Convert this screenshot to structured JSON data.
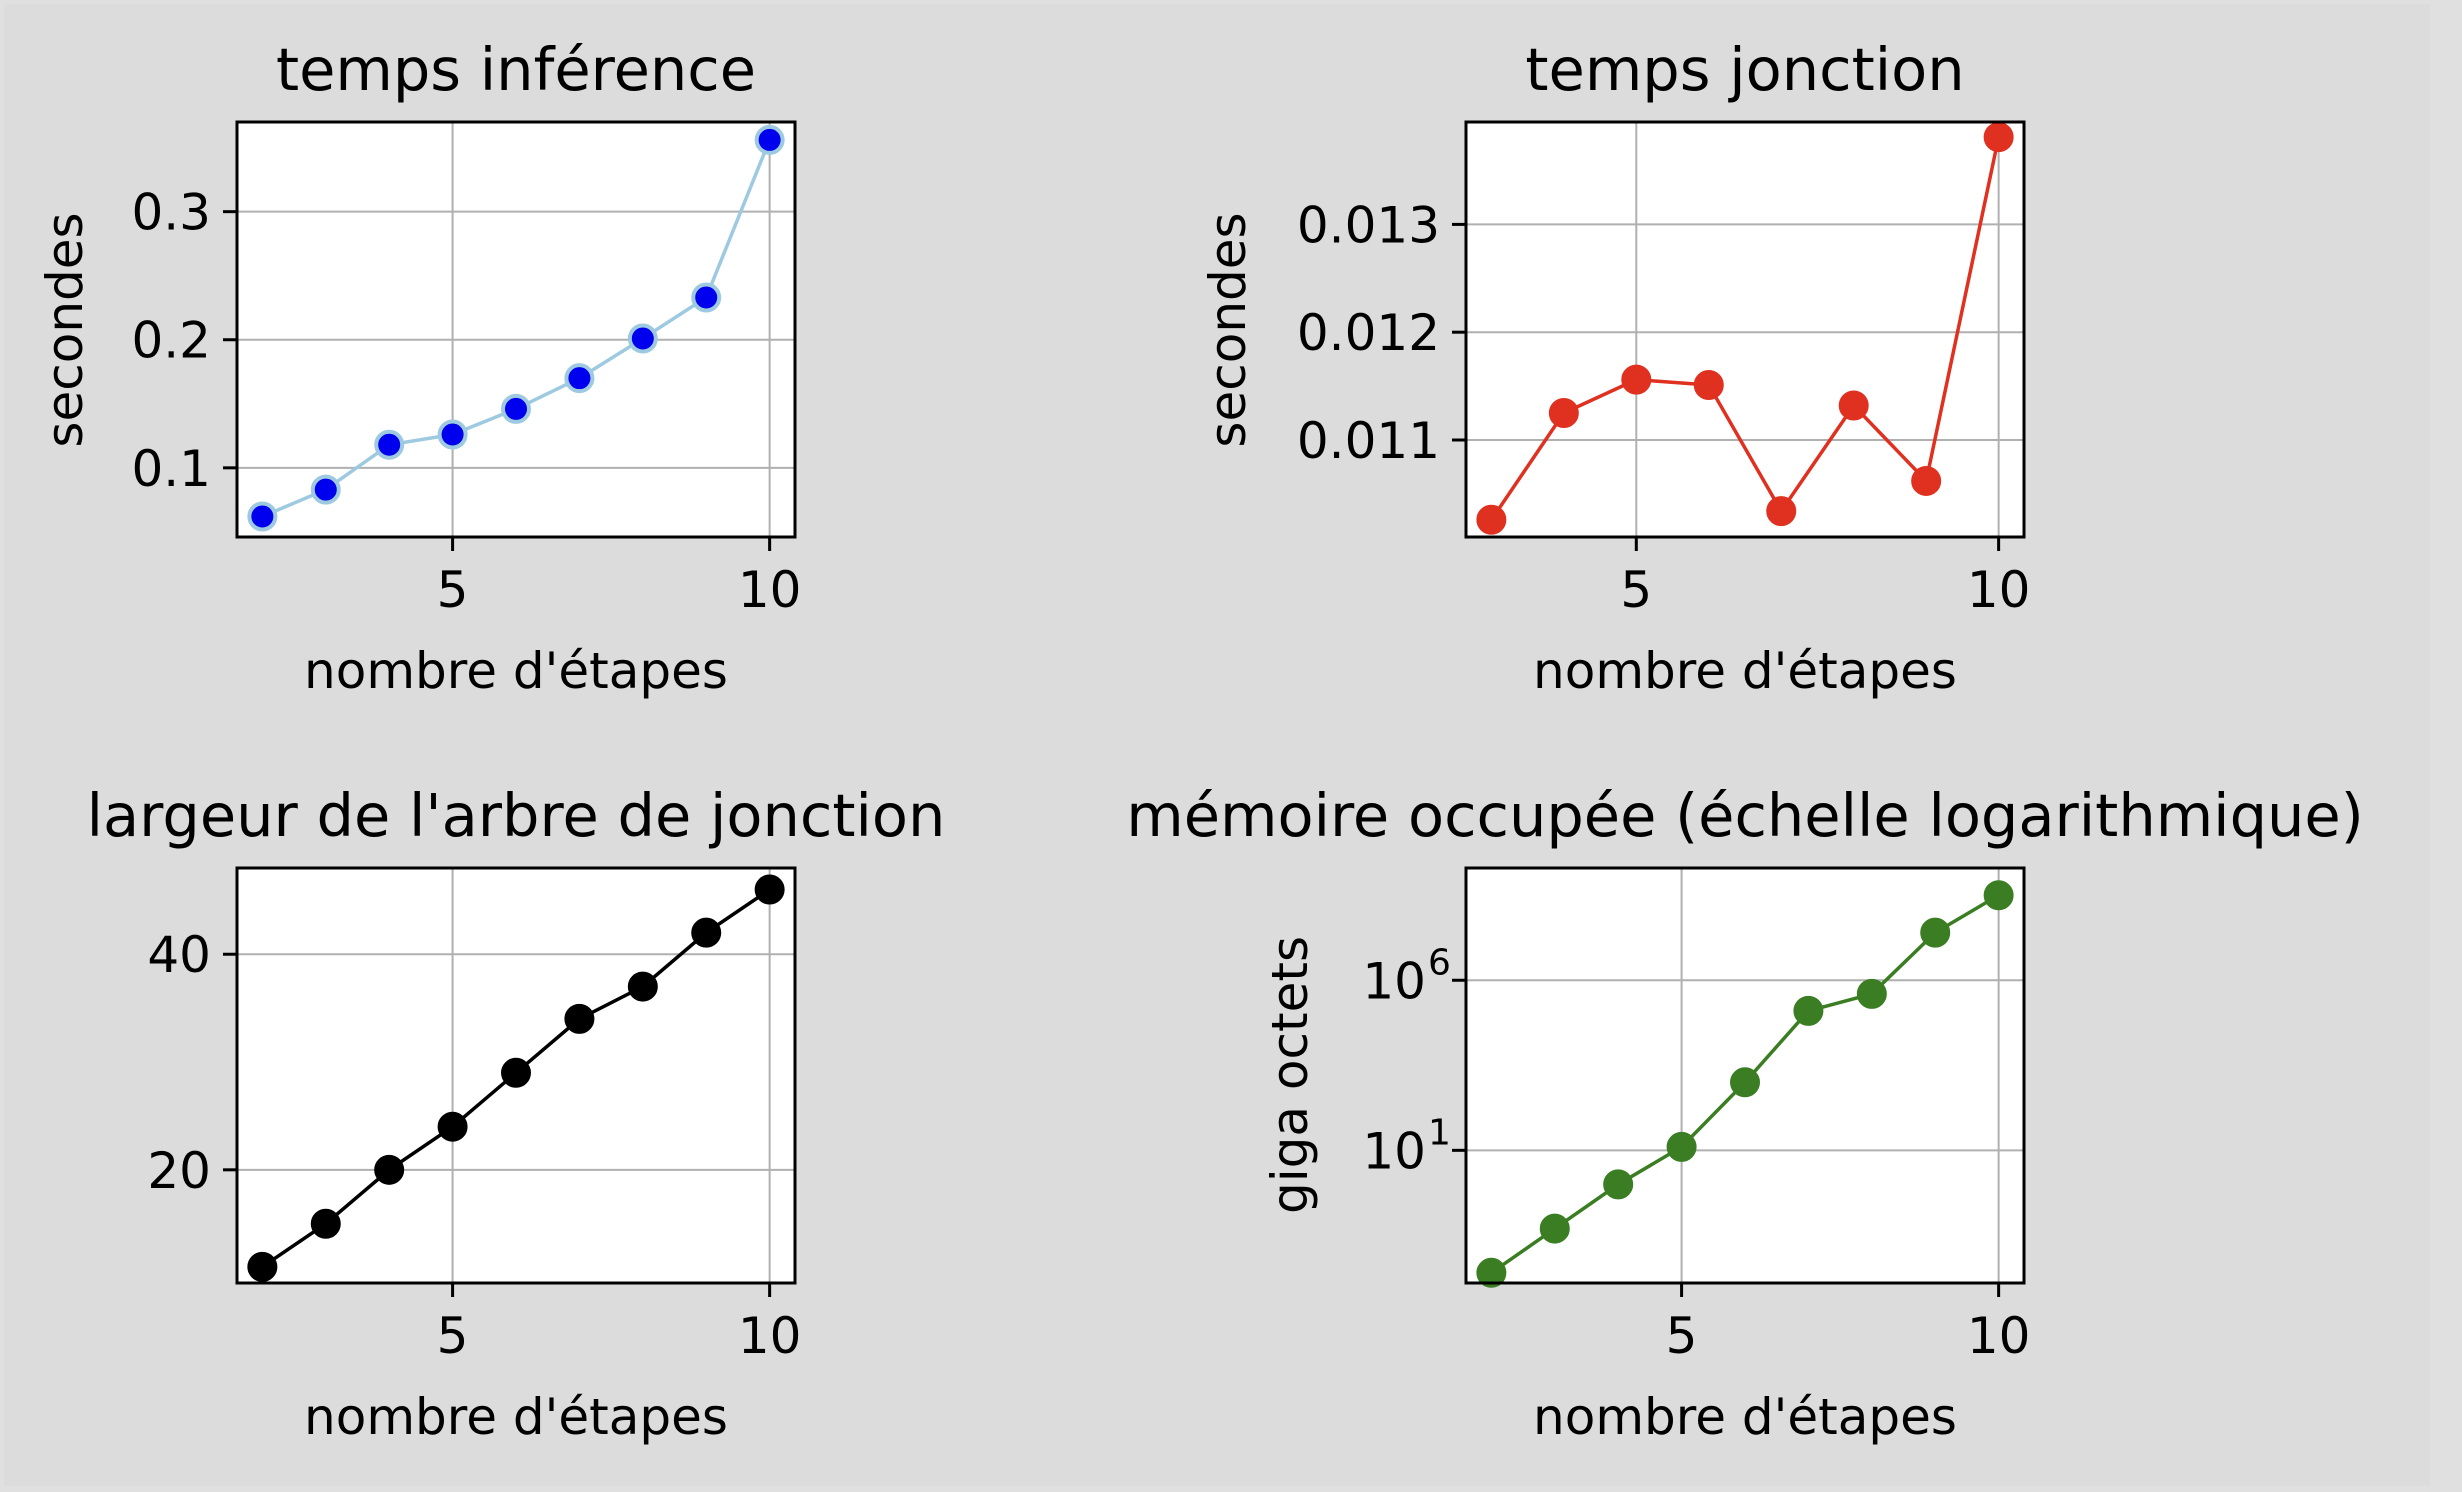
{
  "chart_data": [
    {
      "type": "line",
      "title": "temps inférence",
      "xlabel": "nombre d'étapes",
      "ylabel": "secondes",
      "xscale": "linear",
      "yscale": "linear",
      "grid": true,
      "xlim": [
        1.6,
        10.4
      ],
      "ylim": [
        0.046,
        0.37
      ],
      "xticks": [
        5,
        10
      ],
      "xtick_labels": [
        "5",
        "10"
      ],
      "yticks": [
        0.1,
        0.2,
        0.3
      ],
      "ytick_labels": [
        "0.1",
        "0.2",
        "0.3"
      ],
      "color": "#9ecae1",
      "marker_face": "#0000ee",
      "series": [
        {
          "x": [
            2,
            3,
            4,
            5,
            6,
            7,
            8,
            9,
            10
          ],
          "y": [
            0.062,
            0.083,
            0.118,
            0.126,
            0.146,
            0.17,
            0.201,
            0.233,
            0.356
          ]
        }
      ]
    },
    {
      "type": "line",
      "title": "temps jonction",
      "xlabel": "nombre d'étapes",
      "ylabel": "secondes",
      "xscale": "linear",
      "yscale": "linear",
      "grid": true,
      "xlim": [
        2.65,
        10.35
      ],
      "ylim": [
        0.0101,
        0.01395
      ],
      "xticks": [
        5,
        10
      ],
      "xtick_labels": [
        "5",
        "10"
      ],
      "yticks": [
        0.011,
        0.012,
        0.013
      ],
      "ytick_labels": [
        "0.011",
        "0.012",
        "0.013"
      ],
      "color": "#e03020",
      "marker_face": "#e03020",
      "series": [
        {
          "x": [
            3,
            4,
            5,
            6,
            7,
            8,
            9,
            10
          ],
          "y": [
            0.01026,
            0.01125,
            0.01156,
            0.01151,
            0.01034,
            0.01132,
            0.01062,
            0.01381
          ]
        }
      ]
    },
    {
      "type": "line",
      "title": "largeur de l'arbre de jonction",
      "xlabel": "nombre d'étapes",
      "ylabel": "",
      "xscale": "linear",
      "yscale": "linear",
      "grid": true,
      "xlim": [
        1.6,
        10.4
      ],
      "ylim": [
        9.5,
        48
      ],
      "xticks": [
        5,
        10
      ],
      "xtick_labels": [
        "5",
        "10"
      ],
      "yticks": [
        20,
        40
      ],
      "ytick_labels": [
        "20",
        "40"
      ],
      "color": "#000000",
      "marker_face": "#000000",
      "series": [
        {
          "x": [
            2,
            3,
            4,
            5,
            6,
            7,
            8,
            9,
            10
          ],
          "y": [
            11,
            15,
            20,
            24,
            29,
            34,
            37,
            42,
            46
          ]
        }
      ]
    },
    {
      "type": "line",
      "title": "mémoire occupée (échelle logarithmique)",
      "xlabel": "nombre d'étapes",
      "ylabel": "giga octets",
      "xscale": "linear",
      "yscale": "log",
      "grid": true,
      "xlim": [
        1.6,
        10.4
      ],
      "ylim_log10": [
        -2.9,
        9.3
      ],
      "xticks": [
        5,
        10
      ],
      "xtick_labels": [
        "5",
        "10"
      ],
      "yticks_log10": [
        1,
        6
      ],
      "ytick_labels": [
        "10",
        "10"
      ],
      "ytick_exponents": [
        "1",
        "6"
      ],
      "color": "#3a7d22",
      "marker_face": "#3a7d22",
      "series": [
        {
          "x": [
            2,
            3,
            4,
            5,
            6,
            7,
            8,
            9,
            10
          ],
          "y_log10": [
            -2.6,
            -1.3,
            0.0,
            1.1,
            3.0,
            5.1,
            5.6,
            7.4,
            8.5
          ]
        }
      ]
    }
  ]
}
